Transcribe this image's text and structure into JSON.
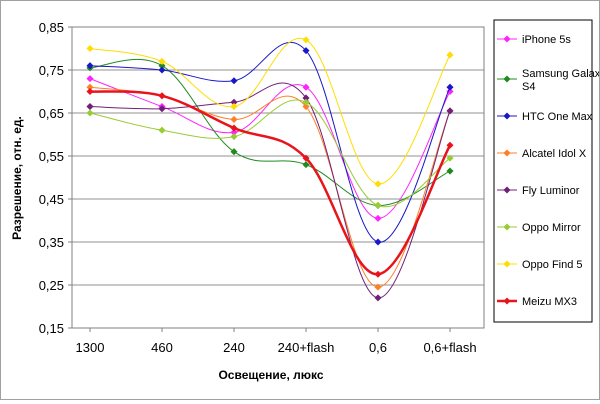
{
  "chart_data": {
    "type": "line",
    "xlabel": "Освещение, люкс",
    "ylabel": "Разрешение, отн. ед.",
    "categories": [
      "1300",
      "460",
      "240",
      "240+flash",
      "0,6",
      "0,6+flash"
    ],
    "yticks": [
      "0,15",
      "0,25",
      "0,35",
      "0,45",
      "0,55",
      "0,65",
      "0,75",
      "0,85"
    ],
    "ylim": [
      0.15,
      0.85
    ],
    "grid": true,
    "legend_position": "right",
    "series": [
      {
        "name": "iPhone 5s",
        "color": "#ff22ff",
        "width": 1,
        "values": [
          0.73,
          0.665,
          0.605,
          0.71,
          0.405,
          0.7
        ]
      },
      {
        "name": "Samsung Galaxy S4",
        "color": "#1f8a1f",
        "width": 1,
        "values": [
          0.755,
          0.76,
          0.56,
          0.53,
          0.435,
          0.515
        ]
      },
      {
        "name": "HTC One Max",
        "color": "#1818c8",
        "width": 1,
        "values": [
          0.76,
          0.75,
          0.725,
          0.795,
          0.35,
          0.71
        ]
      },
      {
        "name": "Alcatel Idol X",
        "color": "#ff7f27",
        "width": 1,
        "values": [
          0.71,
          0.69,
          0.635,
          0.665,
          0.245,
          0.655
        ]
      },
      {
        "name": "Fly Luminor",
        "color": "#70207a",
        "width": 1,
        "values": [
          0.665,
          0.66,
          0.675,
          0.685,
          0.22,
          0.655
        ]
      },
      {
        "name": "Oppo Mirror",
        "color": "#99cc33",
        "width": 1,
        "values": [
          0.65,
          0.61,
          0.595,
          0.675,
          0.435,
          0.545
        ]
      },
      {
        "name": "Oppo Find 5",
        "color": "#ffdd00",
        "width": 1,
        "values": [
          0.8,
          0.77,
          0.665,
          0.82,
          0.485,
          0.785
        ]
      },
      {
        "name": "Meizu MX3",
        "color": "#e8141b",
        "width": 2.5,
        "values": [
          0.7,
          0.69,
          0.615,
          0.545,
          0.275,
          0.575
        ]
      }
    ]
  }
}
